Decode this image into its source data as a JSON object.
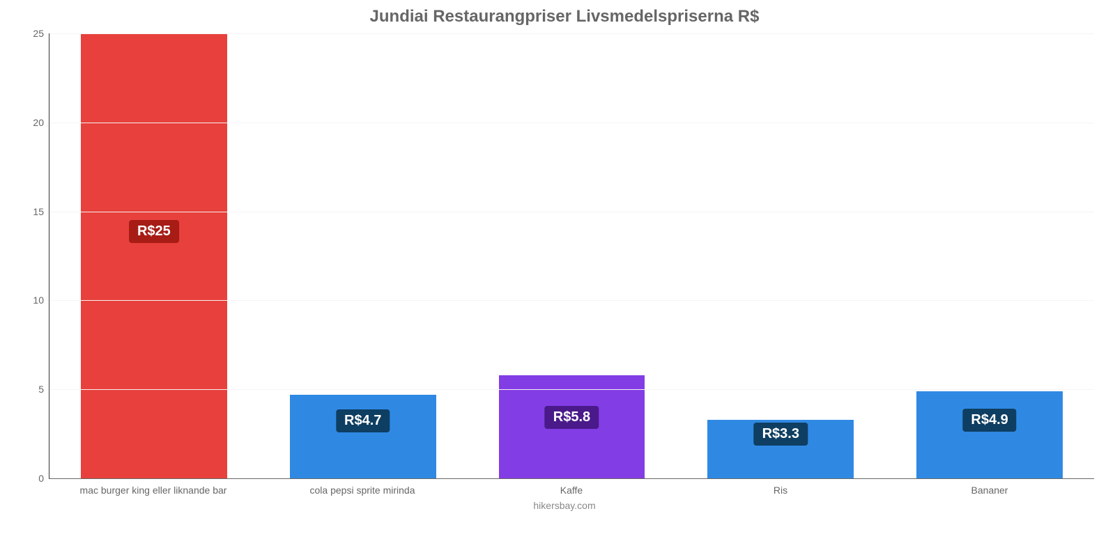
{
  "chart": {
    "type": "bar",
    "title": "Jundiai Restaurangpriser Livsmedelspriserna R$",
    "title_fontsize": 24,
    "title_color": "#666666",
    "footer": "hikersbay.com",
    "footer_color": "#888888",
    "footer_fontsize": 14,
    "background_color": "#ffffff",
    "grid_color": "#f6f3f3",
    "axis_color": "#666666",
    "ylim": [
      0,
      25
    ],
    "ytick_step": 5,
    "yticks": [
      0,
      5,
      10,
      15,
      20,
      25
    ],
    "bar_width_pct": 70,
    "label_fontsize": 14,
    "label_color": "#666666",
    "value_label_fontsize": 20,
    "value_label_padding": "5px 12px",
    "value_label_radius": 4,
    "categories": [
      {
        "label": "mac burger king eller liknande bar",
        "value": 25,
        "display": "R$25",
        "bar_color": "#e8403c",
        "badge_bg": "#a71c15",
        "badge_top_pct": 42
      },
      {
        "label": "cola pepsi sprite mirinda",
        "value": 4.7,
        "display": "R$4.7",
        "bar_color": "#2f89e3",
        "badge_bg": "#0e3e62",
        "badge_top_pct": 18
      },
      {
        "label": "Kaffe",
        "value": 5.8,
        "display": "R$5.8",
        "bar_color": "#823de5",
        "badge_bg": "#4a1a8a",
        "badge_top_pct": 30
      },
      {
        "label": "Ris",
        "value": 3.3,
        "display": "R$3.3",
        "bar_color": "#2f89e3",
        "badge_bg": "#0e3e62",
        "badge_top_pct": 5
      },
      {
        "label": "Bananer",
        "value": 4.9,
        "display": "R$4.9",
        "bar_color": "#2f89e3",
        "badge_bg": "#0e3e62",
        "badge_top_pct": 20
      }
    ]
  }
}
